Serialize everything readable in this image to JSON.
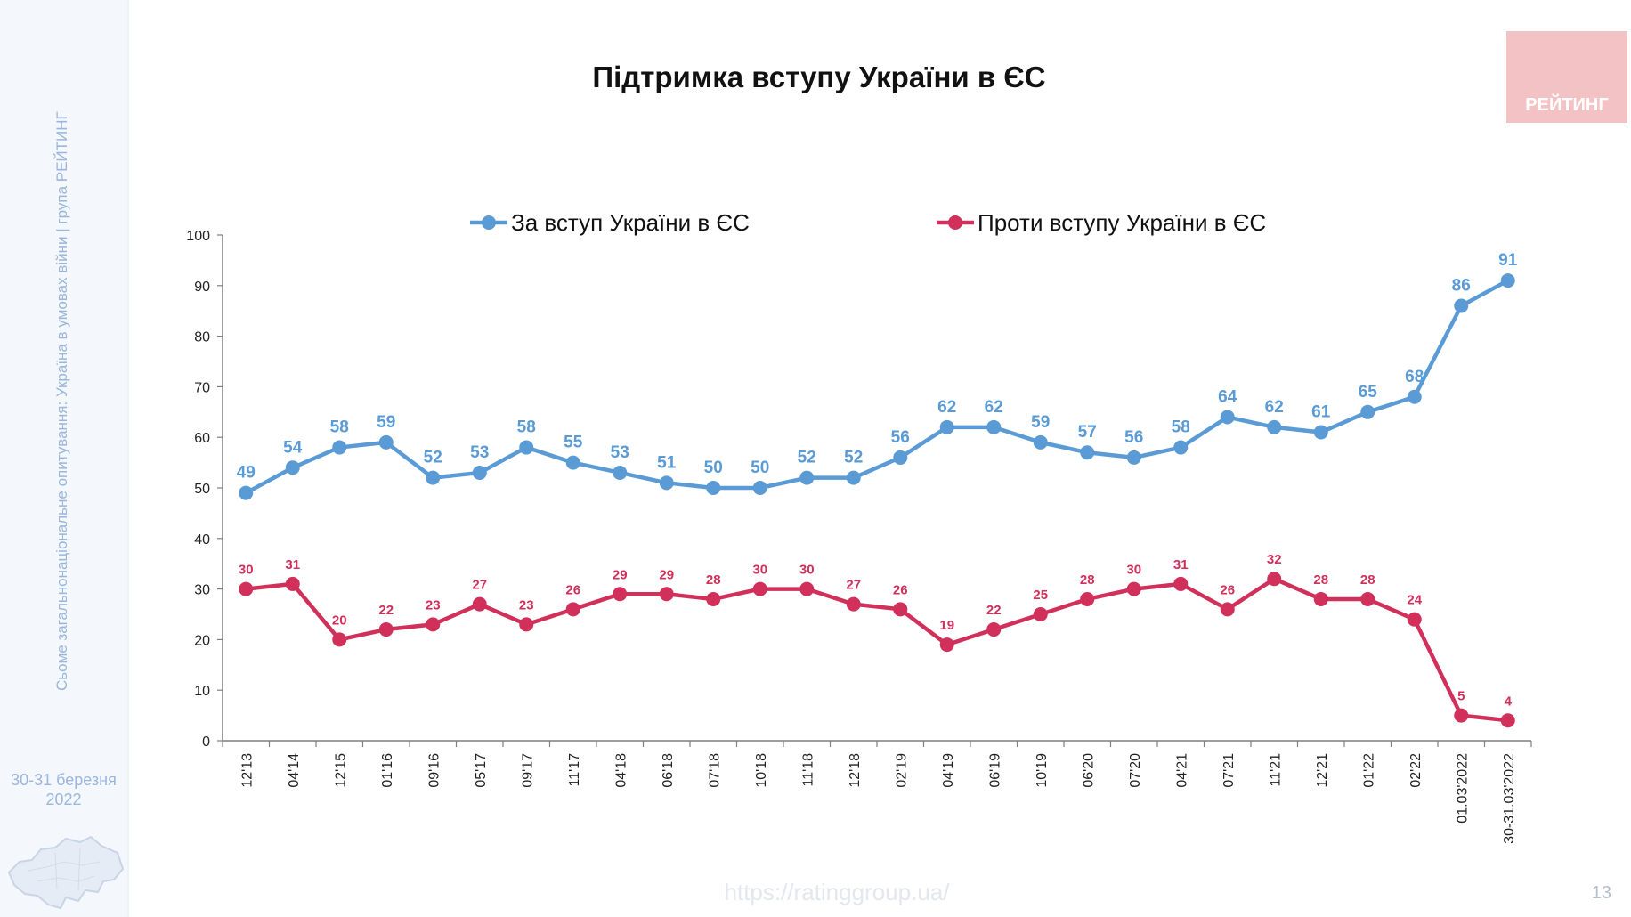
{
  "page": {
    "title": "Підтримка вступу України в ЄС",
    "sidebar_text": "Сьоме загальнонаціональне опитування: Україна в умовах війни | група РЕЙТИНГ",
    "sidebar_date_line1": "30-31 березня",
    "sidebar_date_line2": "2022",
    "logo_text": "РЕЙТИНГ",
    "footer_url": "https://ratinggroup.ua/",
    "page_number": "13"
  },
  "colors": {
    "blue": "#5b9bd5",
    "red": "#d0305a",
    "axis": "#7f7f7f"
  },
  "chart_data": {
    "type": "line",
    "title": "Підтримка вступу України в ЄС",
    "categories": [
      "12'13",
      "04'14",
      "12'15",
      "01'16",
      "09'16",
      "05'17",
      "09'17",
      "11'17",
      "04'18",
      "06'18",
      "07'18",
      "10'18",
      "11'18",
      "12'18",
      "02'19",
      "04'19",
      "06'19",
      "10'19",
      "06'20",
      "07'20",
      "04'21",
      "07'21",
      "11'21",
      "12'21",
      "01'22",
      "02'22",
      "01.03'2022",
      "30-31.03'2022"
    ],
    "series": [
      {
        "name": "За вступ України в ЄС",
        "color": "#5b9bd5",
        "values": [
          49,
          54,
          58,
          59,
          52,
          53,
          58,
          55,
          53,
          51,
          50,
          50,
          52,
          52,
          56,
          62,
          62,
          59,
          57,
          56,
          58,
          64,
          62,
          61,
          65,
          68,
          86,
          91
        ]
      },
      {
        "name": "Проти вступу України в ЄС",
        "color": "#d0305a",
        "values": [
          30,
          31,
          20,
          22,
          23,
          27,
          23,
          26,
          29,
          29,
          28,
          30,
          30,
          27,
          26,
          19,
          22,
          25,
          28,
          30,
          31,
          26,
          32,
          28,
          28,
          24,
          5,
          4
        ]
      }
    ],
    "ylim": [
      0,
      100
    ],
    "yticks": [
      0,
      10,
      20,
      30,
      40,
      50,
      60,
      70,
      80,
      90,
      100
    ],
    "legend": "top",
    "grid": false,
    "data_labels": true
  }
}
